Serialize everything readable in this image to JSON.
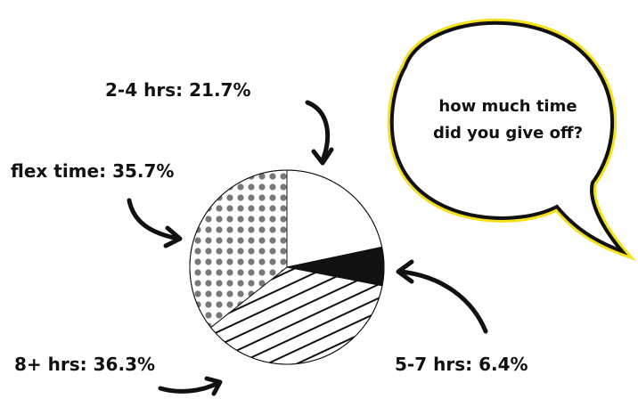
{
  "chart_data": {
    "type": "pie",
    "categories": [
      "2-4 hrs:",
      "5-7 hrs:",
      "8+ hrs:",
      "flex time:"
    ],
    "values": [
      21.7,
      6.4,
      36.3,
      35.7
    ],
    "value_labels": [
      "21.7%",
      "6.4%",
      "36.3%",
      "35.7%"
    ],
    "fills": [
      "white",
      "black",
      "stripes",
      "dots"
    ],
    "annotation": [
      "how much time",
      "did you give off?"
    ]
  }
}
